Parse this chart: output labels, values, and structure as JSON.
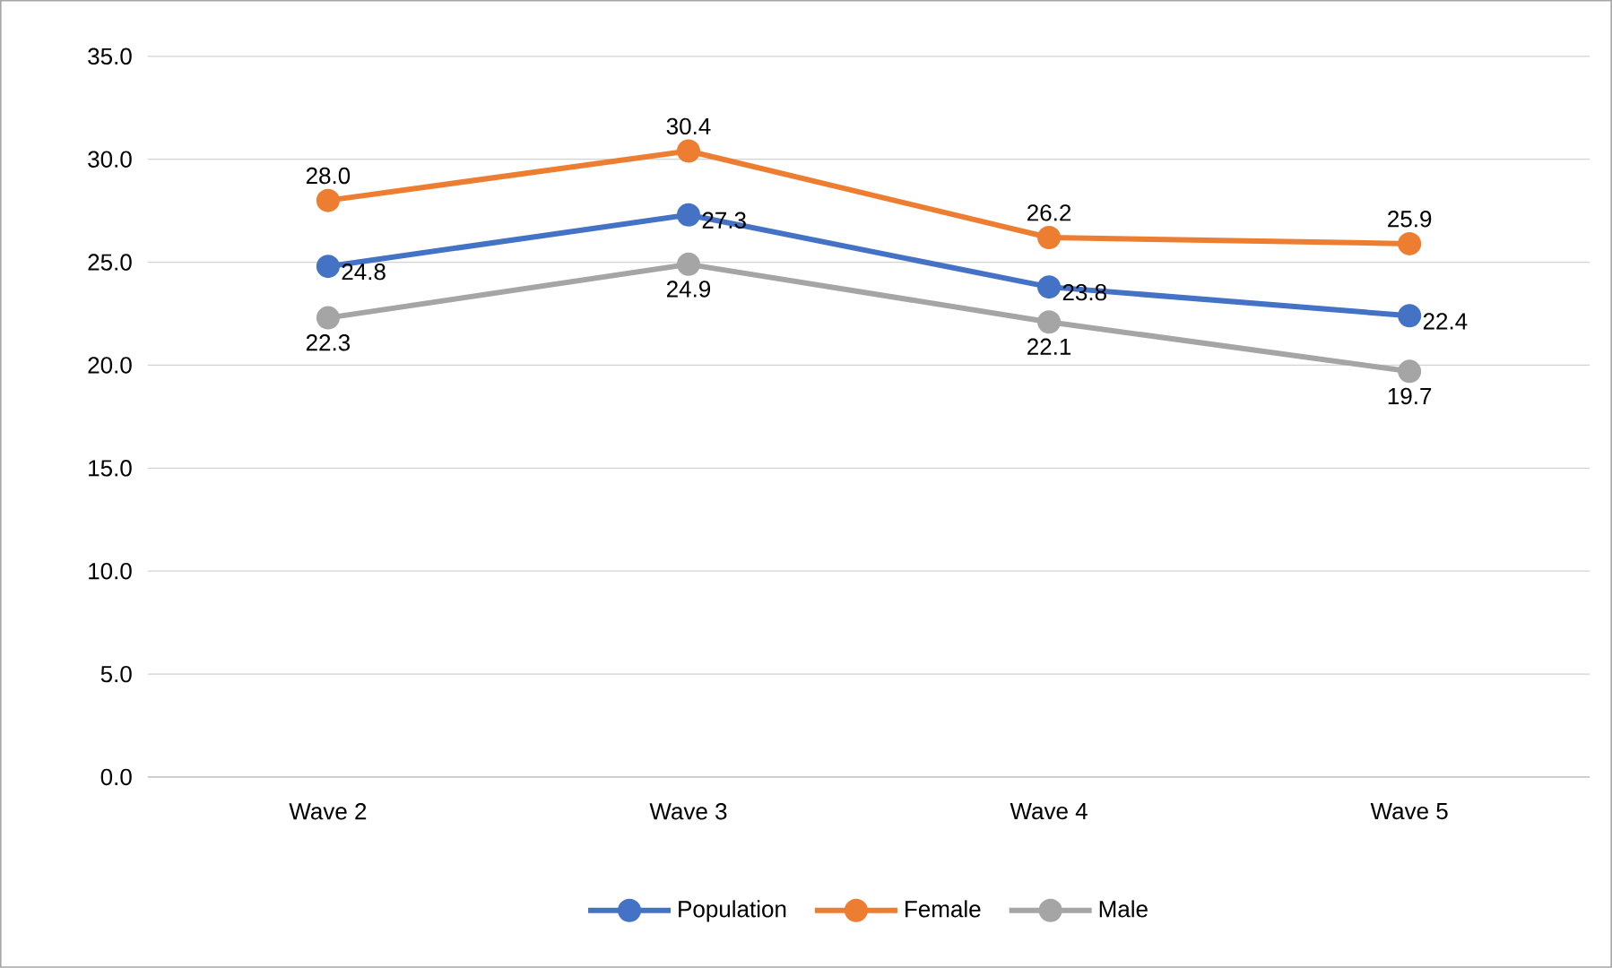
{
  "chart_data": {
    "type": "line",
    "categories": [
      "Wave 2",
      "Wave 3",
      "Wave 4",
      "Wave 5"
    ],
    "series": [
      {
        "name": "Population",
        "color": "#4472c4",
        "values": [
          24.8,
          27.3,
          23.8,
          22.4
        ],
        "value_labels": [
          "24.8",
          "27.3",
          "23.8",
          "22.4"
        ]
      },
      {
        "name": "Female",
        "color": "#ed7d31",
        "values": [
          28.0,
          30.4,
          26.2,
          25.9
        ],
        "value_labels": [
          "28.0",
          "30.4",
          "26.2",
          "25.9"
        ]
      },
      {
        "name": "Male",
        "color": "#a5a5a5",
        "values": [
          22.3,
          24.9,
          22.1,
          19.7
        ],
        "value_labels": [
          "22.3",
          "24.9",
          "22.1",
          "19.7"
        ]
      }
    ],
    "ylim": [
      0,
      35
    ],
    "yticks": [
      {
        "value": 0,
        "label": "0.0"
      },
      {
        "value": 5,
        "label": "5.0"
      },
      {
        "value": 10,
        "label": "10.0"
      },
      {
        "value": 15,
        "label": "15.0"
      },
      {
        "value": 20,
        "label": "20.0"
      },
      {
        "value": 25,
        "label": "25.0"
      },
      {
        "value": 30,
        "label": "30.0"
      },
      {
        "value": 35,
        "label": "35.0"
      }
    ],
    "grid": "y",
    "legend": "bottom",
    "marker": "circle",
    "line_style": "solid"
  }
}
